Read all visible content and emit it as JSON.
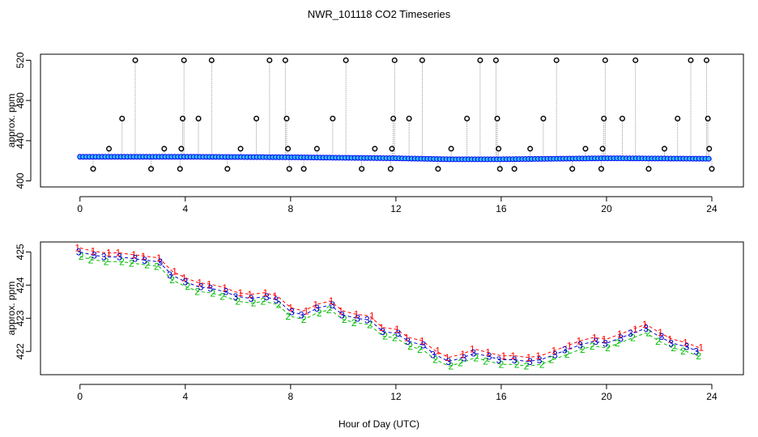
{
  "title": "NWR_101118  CO2 Timeseries",
  "xlabel": "Hour of Day (UTC)",
  "chart_data": [
    {
      "type": "scatter",
      "name": "top-panel",
      "ylabel": "approx. ppm",
      "xlim": [
        -1.5,
        25.2
      ],
      "ylim": [
        394,
        526
      ],
      "xticks": [
        0,
        4,
        8,
        12,
        16,
        20,
        24
      ],
      "yticks": [
        400,
        440,
        480,
        520
      ],
      "baseline": [
        [
          0,
          424
        ],
        [
          4,
          424
        ],
        [
          8,
          423.5
        ],
        [
          12,
          422.5
        ],
        [
          14,
          421.5
        ],
        [
          16,
          421.5
        ],
        [
          20,
          422.5
        ],
        [
          24,
          422
        ]
      ],
      "outliers": [
        {
          "x": 0.5,
          "y": 412
        },
        {
          "x": 1.1,
          "y": 432
        },
        {
          "x": 1.6,
          "y": 462
        },
        {
          "x": 2.1,
          "y": 520
        },
        {
          "x": 2.7,
          "y": 412
        },
        {
          "x": 3.2,
          "y": 432
        },
        {
          "x": 3.8,
          "y": 412
        },
        {
          "x": 3.85,
          "y": 432
        },
        {
          "x": 3.9,
          "y": 462
        },
        {
          "x": 3.95,
          "y": 520
        },
        {
          "x": 4.5,
          "y": 462
        },
        {
          "x": 5.0,
          "y": 520
        },
        {
          "x": 5.6,
          "y": 412
        },
        {
          "x": 6.1,
          "y": 432
        },
        {
          "x": 6.7,
          "y": 462
        },
        {
          "x": 7.2,
          "y": 520
        },
        {
          "x": 7.8,
          "y": 520
        },
        {
          "x": 7.85,
          "y": 462
        },
        {
          "x": 7.9,
          "y": 432
        },
        {
          "x": 7.95,
          "y": 412
        },
        {
          "x": 8.5,
          "y": 412
        },
        {
          "x": 9.0,
          "y": 432
        },
        {
          "x": 9.6,
          "y": 462
        },
        {
          "x": 10.1,
          "y": 520
        },
        {
          "x": 10.7,
          "y": 412
        },
        {
          "x": 11.2,
          "y": 432
        },
        {
          "x": 11.8,
          "y": 412
        },
        {
          "x": 11.85,
          "y": 432
        },
        {
          "x": 11.9,
          "y": 462
        },
        {
          "x": 11.95,
          "y": 520
        },
        {
          "x": 12.5,
          "y": 462
        },
        {
          "x": 13.0,
          "y": 520
        },
        {
          "x": 13.6,
          "y": 412
        },
        {
          "x": 14.1,
          "y": 432
        },
        {
          "x": 14.7,
          "y": 462
        },
        {
          "x": 15.2,
          "y": 520
        },
        {
          "x": 15.8,
          "y": 520
        },
        {
          "x": 15.85,
          "y": 462
        },
        {
          "x": 15.9,
          "y": 432
        },
        {
          "x": 15.95,
          "y": 412
        },
        {
          "x": 16.5,
          "y": 412
        },
        {
          "x": 17.1,
          "y": 432
        },
        {
          "x": 17.6,
          "y": 462
        },
        {
          "x": 18.1,
          "y": 520
        },
        {
          "x": 18.7,
          "y": 412
        },
        {
          "x": 19.2,
          "y": 432
        },
        {
          "x": 19.8,
          "y": 412
        },
        {
          "x": 19.85,
          "y": 432
        },
        {
          "x": 19.9,
          "y": 462
        },
        {
          "x": 19.95,
          "y": 520
        },
        {
          "x": 20.6,
          "y": 462
        },
        {
          "x": 21.1,
          "y": 520
        },
        {
          "x": 21.6,
          "y": 412
        },
        {
          "x": 22.2,
          "y": 432
        },
        {
          "x": 22.7,
          "y": 462
        },
        {
          "x": 23.2,
          "y": 520
        },
        {
          "x": 23.8,
          "y": 520
        },
        {
          "x": 23.85,
          "y": 462
        },
        {
          "x": 23.9,
          "y": 432
        },
        {
          "x": 24.0,
          "y": 412
        }
      ],
      "colors": {
        "baseline_points": "#0000ff",
        "baseline_fill": "#33bbee",
        "outlier_points": "#000000",
        "lines": "#999999"
      }
    },
    {
      "type": "line",
      "name": "bottom-panel",
      "ylabel": "approx. ppm",
      "xlim": [
        -1.5,
        25.2
      ],
      "ylim": [
        421.3,
        425.3
      ],
      "xticks": [
        0,
        4,
        8,
        12,
        16,
        20,
        24
      ],
      "yticks": [
        422,
        423,
        424,
        425
      ],
      "series": [
        {
          "name": "1",
          "color": "#ff0000",
          "offset": 0.12
        },
        {
          "name": "2",
          "color": "#00bb00",
          "offset": -0.14
        },
        {
          "name": "3",
          "color": "#0000cc",
          "offset": 0.0
        }
      ],
      "x": [
        0,
        0.5,
        1,
        1.5,
        2,
        2.5,
        3,
        3.5,
        4,
        4.5,
        5,
        5.5,
        6,
        6.5,
        7,
        7.5,
        8,
        8.5,
        9,
        9.5,
        10,
        10.5,
        11,
        11.5,
        12,
        12.5,
        13,
        13.5,
        14,
        14.5,
        15,
        15.5,
        16,
        16.5,
        17,
        17.5,
        18,
        18.5,
        19,
        19.5,
        20,
        20.5,
        21,
        21.5,
        22,
        22.5,
        23,
        23.5
      ],
      "values": [
        425.0,
        424.9,
        424.85,
        424.85,
        424.8,
        424.75,
        424.7,
        424.3,
        424.1,
        423.95,
        423.9,
        423.8,
        423.65,
        423.6,
        423.65,
        423.55,
        423.2,
        423.1,
        423.3,
        423.4,
        423.1,
        423.0,
        422.95,
        422.6,
        422.55,
        422.3,
        422.2,
        421.9,
        421.7,
        421.8,
        421.95,
        421.85,
        421.75,
        421.75,
        421.7,
        421.75,
        421.9,
        422.05,
        422.2,
        422.3,
        422.25,
        422.4,
        422.55,
        422.7,
        422.45,
        422.25,
        422.15,
        422.0
      ]
    }
  ]
}
